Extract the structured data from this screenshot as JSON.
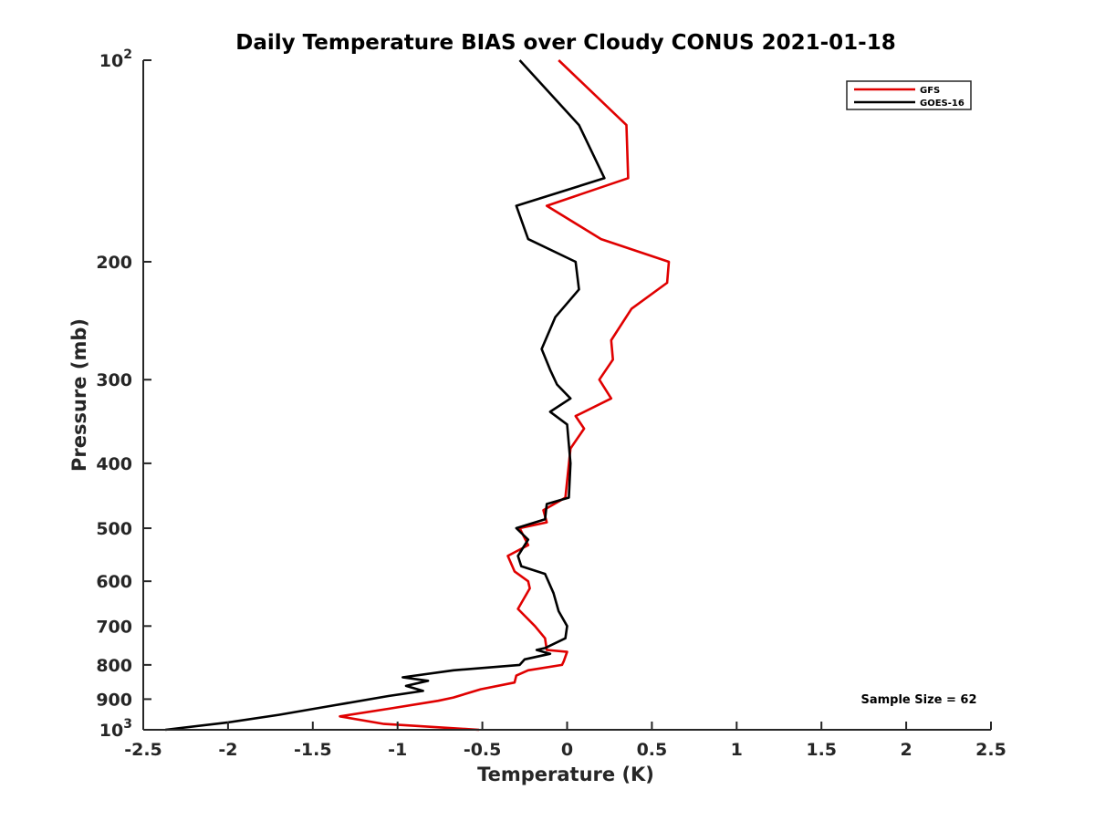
{
  "chart_data": {
    "type": "line",
    "title": "Daily Temperature BIAS over Cloudy CONUS 2021-01-18",
    "xlabel": "Temperature (K)",
    "ylabel": "Pressure (mb)",
    "xlim": [
      -2.5,
      2.5
    ],
    "ylim": [
      100,
      1000
    ],
    "yscale": "log",
    "y_reversed": true,
    "grid": false,
    "legend_position": "top-right",
    "x_ticks": [
      -2.5,
      -2,
      -1.5,
      -1,
      -0.5,
      0,
      0.5,
      1,
      1.5,
      2,
      2.5
    ],
    "x_tick_labels": [
      "-2.5",
      "-2",
      "-1.5",
      "-1",
      "-0.5",
      "0",
      "0.5",
      "1",
      "1.5",
      "2",
      "2.5"
    ],
    "y_ticks": [
      100,
      200,
      300,
      400,
      500,
      600,
      700,
      800,
      900,
      1000
    ],
    "y_tick_labels": [
      "10^2",
      "200",
      "300",
      "400",
      "500",
      "600",
      "700",
      "800",
      "900",
      "10^3"
    ],
    "annotation": "Sample Size = 62",
    "series": [
      {
        "name": "GFS",
        "color": "#e00000",
        "x": [
          -0.05,
          0.35,
          0.36,
          -0.12,
          0.2,
          0.6,
          0.59,
          0.38,
          0.26,
          0.27,
          0.19,
          0.26,
          0.05,
          0.1,
          0.02,
          -0.01,
          -0.14,
          -0.12,
          -0.28,
          -0.23,
          -0.35,
          -0.31,
          -0.23,
          -0.22,
          -0.29,
          -0.19,
          -0.13,
          -0.12,
          0.0,
          -0.02,
          -0.03,
          -0.23,
          -0.3,
          -0.31,
          -0.51,
          -0.67,
          -0.76,
          -1.05,
          -1.34,
          -1.08,
          -0.52
        ],
        "y": [
          100,
          125,
          150,
          165,
          185,
          200,
          215,
          235,
          262,
          280,
          300,
          320,
          340,
          355,
          380,
          450,
          470,
          490,
          500,
          530,
          550,
          580,
          600,
          615,
          660,
          700,
          730,
          760,
          765,
          790,
          800,
          815,
          830,
          850,
          870,
          895,
          905,
          930,
          955,
          980,
          1000
        ]
      },
      {
        "name": "GOES-16",
        "color": "#000000",
        "x": [
          -0.28,
          0.07,
          0.22,
          -0.3,
          -0.23,
          0.05,
          0.07,
          -0.07,
          -0.15,
          -0.1,
          -0.06,
          0.02,
          -0.1,
          0.0,
          0.02,
          0.01,
          -0.12,
          -0.13,
          -0.3,
          -0.23,
          -0.29,
          -0.27,
          -0.13,
          -0.08,
          -0.05,
          0.0,
          -0.01,
          -0.13,
          -0.18,
          -0.1,
          -0.25,
          -0.28,
          -0.67,
          -0.97,
          -0.82,
          -0.95,
          -0.85,
          -1.05,
          -1.38,
          -1.7,
          -2.0,
          -2.37
        ],
        "y": [
          100,
          125,
          150,
          165,
          185,
          200,
          220,
          242,
          270,
          290,
          305,
          320,
          335,
          350,
          400,
          450,
          460,
          485,
          500,
          520,
          550,
          570,
          585,
          625,
          665,
          700,
          730,
          755,
          760,
          770,
          785,
          800,
          815,
          835,
          845,
          860,
          875,
          890,
          920,
          950,
          975,
          1000
        ]
      }
    ]
  }
}
